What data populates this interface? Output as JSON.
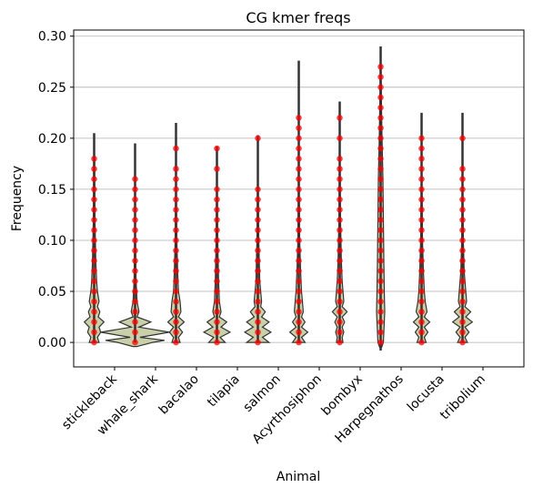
{
  "chart_data": {
    "type": "violin",
    "title": "CG kmer freqs",
    "xlabel": "Animal",
    "ylabel": "Frequency",
    "categories": [
      "stickleback",
      "whale_shark",
      "bacalao",
      "tilapia",
      "salmon",
      "Acyrthosiphon",
      "bombyx",
      "Harpegnathos",
      "locusta",
      "tribolium"
    ],
    "ylim": [
      -0.024,
      0.306
    ],
    "yticks": [
      0.0,
      0.05,
      0.1,
      0.15,
      0.2,
      0.25,
      0.3
    ],
    "ytick_labels": [
      "0.00",
      "0.05",
      "0.10",
      "0.15",
      "0.20",
      "0.25",
      "0.30"
    ],
    "grid": "y",
    "colors": {
      "violin_fill": "#c9cfa8",
      "violin_edge": "#333333",
      "points": "#ff0000"
    },
    "violins": [
      {
        "name": "stickleback",
        "whisker": [
          0.0,
          0.205
        ],
        "max_width": 0.12,
        "density": [
          [
            0.0,
            0.06
          ],
          [
            0.005,
            0.04
          ],
          [
            0.01,
            0.08
          ],
          [
            0.015,
            0.06
          ],
          [
            0.02,
            0.12
          ],
          [
            0.025,
            0.05
          ],
          [
            0.03,
            0.07
          ],
          [
            0.035,
            0.04
          ],
          [
            0.04,
            0.06
          ],
          [
            0.05,
            0.04
          ],
          [
            0.06,
            0.03
          ],
          [
            0.08,
            0.02
          ],
          [
            0.12,
            0.01
          ],
          [
            0.18,
            0.005
          ]
        ],
        "points": [
          0.0,
          0.01,
          0.02,
          0.03,
          0.04,
          0.05,
          0.06,
          0.07,
          0.08,
          0.09,
          0.1,
          0.11,
          0.12,
          0.13,
          0.14,
          0.15,
          0.16,
          0.17,
          0.18
        ]
      },
      {
        "name": "whale_shark",
        "whisker": [
          0.0,
          0.195
        ],
        "max_width": 0.42,
        "density": [
          [
            -0.004,
            0.02
          ],
          [
            0.0,
            0.18
          ],
          [
            0.002,
            0.3
          ],
          [
            0.005,
            0.05
          ],
          [
            0.01,
            0.35
          ],
          [
            0.015,
            0.04
          ],
          [
            0.02,
            0.16
          ],
          [
            0.025,
            0.02
          ],
          [
            0.03,
            0.04
          ],
          [
            0.04,
            0.02
          ],
          [
            0.06,
            0.01
          ],
          [
            0.1,
            0.005
          ]
        ],
        "points": [
          0.0,
          0.01,
          0.02,
          0.03,
          0.04,
          0.05,
          0.06,
          0.07,
          0.08,
          0.09,
          0.1,
          0.11,
          0.12,
          0.13,
          0.14,
          0.15,
          0.16
        ]
      },
      {
        "name": "bacalao",
        "whisker": [
          0.0,
          0.215
        ],
        "max_width": 0.1,
        "density": [
          [
            0.0,
            0.05
          ],
          [
            0.005,
            0.03
          ],
          [
            0.01,
            0.08
          ],
          [
            0.015,
            0.03
          ],
          [
            0.02,
            0.1
          ],
          [
            0.025,
            0.03
          ],
          [
            0.03,
            0.06
          ],
          [
            0.04,
            0.05
          ],
          [
            0.05,
            0.03
          ],
          [
            0.07,
            0.02
          ],
          [
            0.1,
            0.01
          ],
          [
            0.15,
            0.005
          ]
        ],
        "points": [
          0.0,
          0.01,
          0.02,
          0.03,
          0.04,
          0.05,
          0.06,
          0.07,
          0.08,
          0.09,
          0.1,
          0.11,
          0.12,
          0.13,
          0.14,
          0.15,
          0.16,
          0.17,
          0.19
        ]
      },
      {
        "name": "tilapia",
        "whisker": [
          0.0,
          0.192
        ],
        "max_width": 0.16,
        "density": [
          [
            0.0,
            0.1
          ],
          [
            0.005,
            0.04
          ],
          [
            0.01,
            0.16
          ],
          [
            0.015,
            0.05
          ],
          [
            0.02,
            0.12
          ],
          [
            0.025,
            0.03
          ],
          [
            0.03,
            0.05
          ],
          [
            0.04,
            0.03
          ],
          [
            0.06,
            0.02
          ],
          [
            0.1,
            0.01
          ],
          [
            0.15,
            0.005
          ]
        ],
        "points": [
          0.0,
          0.01,
          0.02,
          0.03,
          0.04,
          0.05,
          0.06,
          0.07,
          0.08,
          0.09,
          0.1,
          0.11,
          0.12,
          0.13,
          0.14,
          0.15,
          0.17,
          0.19
        ]
      },
      {
        "name": "salmon",
        "whisker": [
          0.0,
          0.203
        ],
        "max_width": 0.16,
        "density": [
          [
            0.0,
            0.12
          ],
          [
            0.005,
            0.05
          ],
          [
            0.01,
            0.14
          ],
          [
            0.015,
            0.05
          ],
          [
            0.02,
            0.12
          ],
          [
            0.025,
            0.04
          ],
          [
            0.03,
            0.08
          ],
          [
            0.035,
            0.03
          ],
          [
            0.04,
            0.04
          ],
          [
            0.06,
            0.02
          ],
          [
            0.1,
            0.01
          ],
          [
            0.15,
            0.005
          ]
        ],
        "points": [
          0.0,
          0.01,
          0.02,
          0.03,
          0.04,
          0.05,
          0.06,
          0.07,
          0.08,
          0.09,
          0.1,
          0.11,
          0.12,
          0.13,
          0.14,
          0.15,
          0.2
        ]
      },
      {
        "name": "Acyrthosiphon",
        "whisker": [
          0.0,
          0.276
        ],
        "max_width": 0.11,
        "density": [
          [
            0.0,
            0.07
          ],
          [
            0.005,
            0.03
          ],
          [
            0.01,
            0.1
          ],
          [
            0.015,
            0.03
          ],
          [
            0.02,
            0.07
          ],
          [
            0.025,
            0.03
          ],
          [
            0.03,
            0.05
          ],
          [
            0.04,
            0.04
          ],
          [
            0.05,
            0.03
          ],
          [
            0.07,
            0.02
          ],
          [
            0.1,
            0.01
          ],
          [
            0.15,
            0.005
          ],
          [
            0.2,
            0.004
          ]
        ],
        "points": [
          0.0,
          0.01,
          0.02,
          0.03,
          0.04,
          0.05,
          0.06,
          0.07,
          0.08,
          0.09,
          0.1,
          0.11,
          0.12,
          0.13,
          0.14,
          0.15,
          0.16,
          0.17,
          0.18,
          0.19,
          0.2,
          0.21,
          0.22
        ]
      },
      {
        "name": "bombyx",
        "whisker": [
          0.0,
          0.236
        ],
        "max_width": 0.09,
        "density": [
          [
            0.0,
            0.04
          ],
          [
            0.005,
            0.03
          ],
          [
            0.01,
            0.05
          ],
          [
            0.015,
            0.03
          ],
          [
            0.02,
            0.06
          ],
          [
            0.025,
            0.03
          ],
          [
            0.03,
            0.09
          ],
          [
            0.035,
            0.03
          ],
          [
            0.04,
            0.05
          ],
          [
            0.05,
            0.04
          ],
          [
            0.06,
            0.03
          ],
          [
            0.08,
            0.02
          ],
          [
            0.12,
            0.01
          ],
          [
            0.18,
            0.004
          ]
        ],
        "points": [
          0.0,
          0.01,
          0.02,
          0.03,
          0.04,
          0.05,
          0.06,
          0.07,
          0.08,
          0.09,
          0.1,
          0.11,
          0.12,
          0.13,
          0.14,
          0.15,
          0.16,
          0.17,
          0.18,
          0.2,
          0.22
        ]
      },
      {
        "name": "Harpegnathos",
        "whisker": [
          -0.008,
          0.29
        ],
        "max_width": 0.05,
        "density": [
          [
            -0.005,
            0.01
          ],
          [
            0.0,
            0.03
          ],
          [
            0.01,
            0.035
          ],
          [
            0.02,
            0.04
          ],
          [
            0.03,
            0.045
          ],
          [
            0.05,
            0.04
          ],
          [
            0.08,
            0.035
          ],
          [
            0.12,
            0.03
          ],
          [
            0.16,
            0.025
          ],
          [
            0.2,
            0.015
          ],
          [
            0.24,
            0.008
          ],
          [
            0.27,
            0.004
          ]
        ],
        "points": [
          0.0,
          0.01,
          0.02,
          0.03,
          0.04,
          0.05,
          0.06,
          0.07,
          0.08,
          0.09,
          0.1,
          0.11,
          0.12,
          0.13,
          0.14,
          0.15,
          0.16,
          0.17,
          0.18,
          0.19,
          0.2,
          0.21,
          0.22,
          0.23,
          0.24,
          0.25,
          0.26,
          0.27
        ]
      },
      {
        "name": "locusta",
        "whisker": [
          0.0,
          0.225
        ],
        "max_width": 0.1,
        "density": [
          [
            0.0,
            0.05
          ],
          [
            0.005,
            0.03
          ],
          [
            0.01,
            0.07
          ],
          [
            0.015,
            0.03
          ],
          [
            0.02,
            0.09
          ],
          [
            0.025,
            0.03
          ],
          [
            0.03,
            0.06
          ],
          [
            0.04,
            0.04
          ],
          [
            0.05,
            0.03
          ],
          [
            0.07,
            0.02
          ],
          [
            0.1,
            0.01
          ],
          [
            0.15,
            0.005
          ]
        ],
        "points": [
          0.0,
          0.01,
          0.02,
          0.03,
          0.04,
          0.05,
          0.06,
          0.07,
          0.08,
          0.09,
          0.1,
          0.11,
          0.12,
          0.13,
          0.14,
          0.15,
          0.16,
          0.17,
          0.18,
          0.19,
          0.2
        ]
      },
      {
        "name": "tribolium",
        "whisker": [
          0.0,
          0.225
        ],
        "max_width": 0.12,
        "density": [
          [
            0.0,
            0.06
          ],
          [
            0.005,
            0.03
          ],
          [
            0.01,
            0.08
          ],
          [
            0.015,
            0.03
          ],
          [
            0.02,
            0.12
          ],
          [
            0.025,
            0.04
          ],
          [
            0.03,
            0.1
          ],
          [
            0.035,
            0.03
          ],
          [
            0.04,
            0.05
          ],
          [
            0.05,
            0.04
          ],
          [
            0.07,
            0.02
          ],
          [
            0.1,
            0.01
          ],
          [
            0.15,
            0.005
          ]
        ],
        "points": [
          0.0,
          0.01,
          0.02,
          0.03,
          0.04,
          0.05,
          0.06,
          0.07,
          0.08,
          0.09,
          0.1,
          0.11,
          0.12,
          0.13,
          0.14,
          0.15,
          0.16,
          0.17,
          0.2
        ]
      }
    ]
  }
}
